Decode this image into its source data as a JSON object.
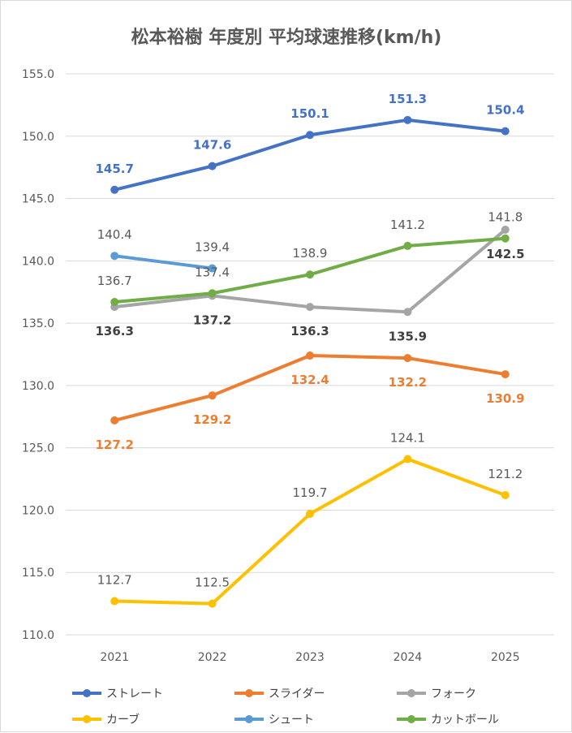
{
  "chart_data": {
    "type": "line",
    "title": "松本裕樹 年度別 平均球速推移(km/h)",
    "xlabel": "",
    "ylabel": "",
    "categories": [
      "2021",
      "2022",
      "2023",
      "2024",
      "2025"
    ],
    "ylim": [
      110.0,
      155.0
    ],
    "yticks": [
      "110.0",
      "115.0",
      "120.0",
      "125.0",
      "130.0",
      "135.0",
      "140.0",
      "145.0",
      "150.0",
      "155.0"
    ],
    "grid": true,
    "legend_position": "bottom",
    "series": [
      {
        "name": "ストレート",
        "color": "#4472C4",
        "values": [
          145.7,
          147.6,
          150.1,
          151.3,
          150.4
        ],
        "labels": [
          "145.7",
          "147.6",
          "150.1",
          "151.3",
          "150.4"
        ],
        "label_color": "#4472C4",
        "label_pos": "above"
      },
      {
        "name": "スライダー",
        "color": "#ED7D31",
        "values": [
          127.2,
          129.2,
          132.4,
          132.2,
          130.9
        ],
        "labels": [
          "127.2",
          "129.2",
          "132.4",
          "132.2",
          "130.9"
        ],
        "label_color": "#ED7D31",
        "label_pos": "below"
      },
      {
        "name": "フォーク",
        "color": "#A5A5A5",
        "values": [
          136.3,
          137.2,
          136.3,
          135.9,
          142.5
        ],
        "labels": [
          "136.3",
          "137.2",
          "136.3",
          "135.9",
          "142.5"
        ],
        "label_color": "#404040",
        "label_pos": "below"
      },
      {
        "name": "カーブ",
        "color": "#FFC000",
        "values": [
          112.7,
          112.5,
          119.7,
          124.1,
          121.2
        ],
        "labels": [
          "112.7",
          "112.5",
          "119.7",
          "124.1",
          "121.2"
        ],
        "label_color": "#595959",
        "label_pos": "above"
      },
      {
        "name": "シュート",
        "color": "#5B9BD5",
        "values": [
          140.4,
          139.4,
          null,
          null,
          null
        ],
        "labels": [
          "140.4",
          "139.4",
          null,
          null,
          null
        ],
        "label_color": "#595959",
        "label_pos": "above"
      },
      {
        "name": "カットボール",
        "color": "#70AD47",
        "values": [
          136.7,
          137.4,
          138.9,
          141.2,
          141.8
        ],
        "labels": [
          "136.7",
          "137.4",
          "138.9",
          "141.2",
          "141.8"
        ],
        "label_color": "#595959",
        "label_pos": "above"
      }
    ]
  }
}
